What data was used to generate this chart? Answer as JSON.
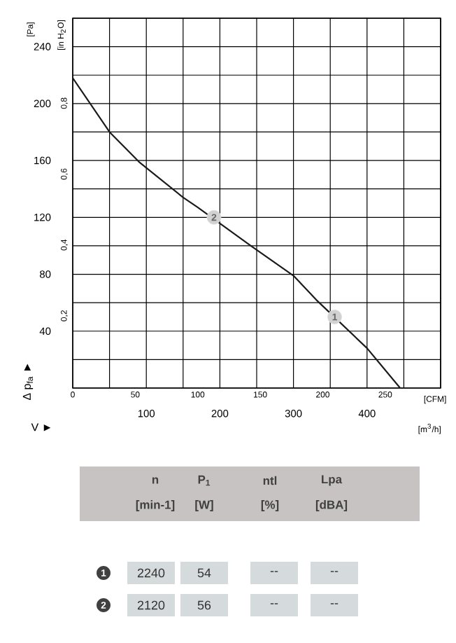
{
  "chart_data": {
    "type": "line",
    "xlabel": "[m$^{3}$/h]",
    "x2label": "[CFM]",
    "ylabel": "[Pa]",
    "y2label": "[in H$_{2}$O]",
    "xlim": [
      0,
      500
    ],
    "xticks": [
      {
        "value": 0,
        "label": null
      },
      {
        "value": 50,
        "label": null
      },
      100,
      {
        "value": 150,
        "label": null
      },
      200,
      {
        "value": 250,
        "label": null
      },
      300,
      {
        "value": 350,
        "label": null
      },
      400,
      {
        "value": 450,
        "label": null
      },
      {
        "value": 500,
        "label": null
      }
    ],
    "x2lim": [
      0,
      294.3
    ],
    "x2ticks": [
      0,
      50,
      100,
      150,
      200,
      250
    ],
    "ylim": [
      0,
      260
    ],
    "yticks": [
      {
        "value": 0,
        "label": null
      },
      {
        "value": 20,
        "label": null
      },
      40,
      {
        "value": 60,
        "label": null
      },
      80,
      {
        "value": 100,
        "label": null
      },
      120,
      {
        "value": 140,
        "label": null
      },
      160,
      {
        "value": 180,
        "label": null
      },
      200,
      {
        "value": 220,
        "label": null
      },
      240,
      {
        "value": 260,
        "label": null
      }
    ],
    "y2lim": [
      0,
      1.044
    ],
    "y2ticks": [
      {
        "value": 0.2,
        "label": "0,2"
      },
      {
        "value": 0.4,
        "label": "0,4"
      },
      {
        "value": 0.6,
        "label": "0,6"
      },
      {
        "value": 0.8,
        "label": "0,8"
      }
    ],
    "grid": true,
    "marker": "none",
    "line_style": "solid",
    "series": [
      {
        "color": "#1a1a1a",
        "x": [
          0,
          50,
          90,
          150,
          170,
          242,
          300,
          331,
          400,
          445
        ],
        "values": [
          218,
          180,
          159,
          134,
          127,
          100,
          79,
          62,
          28,
          0
        ]
      }
    ],
    "annotations": [
      {
        "text": "2",
        "x": 192,
        "y": 120
      },
      {
        "text": "1",
        "x": 356,
        "y": 50
      },
      "Δ p$_{fa}$ ►",
      "V ►",
      "n",
      "[min-1]",
      "P$_{1}$",
      "[W]",
      "ntl",
      "[%]",
      "Lpa",
      "[dBA]",
      "1",
      "2240",
      "54",
      "--",
      "--",
      "2",
      "2120",
      "56",
      "--",
      "--"
    ]
  }
}
